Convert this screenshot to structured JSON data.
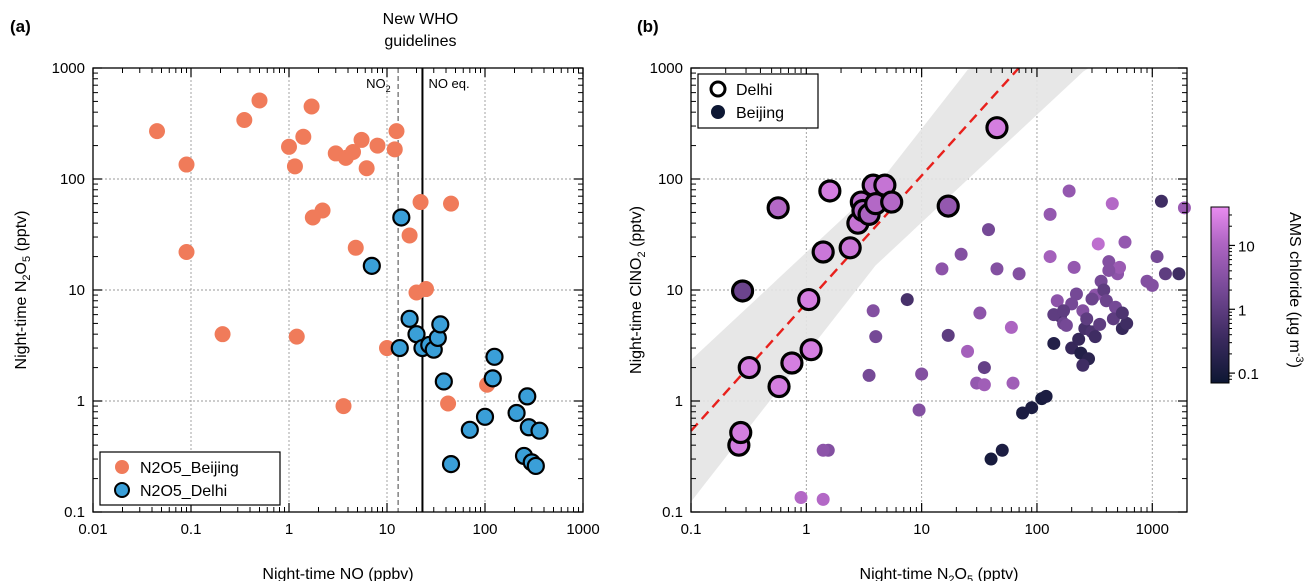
{
  "figure": {
    "panel_labels": [
      "(a)",
      "(b)"
    ]
  },
  "chart_data": [
    {
      "type": "scatter",
      "panel": "(a)",
      "xlabel": "Night-time NO (ppbv)",
      "ylabel_main": "Night-time N",
      "ylabel_sub1": "2",
      "ylabel_mid": "O",
      "ylabel_sub2": "5",
      "ylabel_end": " (pptv)",
      "xscale": "log",
      "yscale": "log",
      "xlim": [
        0.01,
        1000
      ],
      "ylim": [
        0.1,
        1000
      ],
      "xticks": [
        "0.01",
        "0.1",
        "1",
        "10",
        "100",
        "1000"
      ],
      "yticks": [
        "0.1",
        "1",
        "10",
        "100",
        "1000"
      ],
      "grid": true,
      "legend": "bottom-left",
      "guideline_title_line1": "New WHO",
      "guideline_title_line2": "guidelines",
      "guidelines": [
        {
          "label_main": "NO",
          "label_sub": "2",
          "x": 13,
          "style": "dashed"
        },
        {
          "label_main": "NO eq.",
          "label_sub": "",
          "x": 23,
          "style": "solid"
        }
      ],
      "series": [
        {
          "name": "N2O5_Beijing",
          "color": "#f07b5a",
          "outline": false,
          "x": [
            0.045,
            0.09,
            0.09,
            0.21,
            0.35,
            0.5,
            1.0,
            1.15,
            1.2,
            1.4,
            1.7,
            1.75,
            2.2,
            3.0,
            3.6,
            3.8,
            4.5,
            4.8,
            5.5,
            6.2,
            8.0,
            10.0,
            12.0,
            12.5,
            17.0,
            20.0,
            22.0,
            25.0,
            45.0,
            42.0,
            105.0
          ],
          "y": [
            270,
            135,
            22,
            4.0,
            340,
            510,
            195,
            130,
            3.8,
            240,
            450,
            45,
            52,
            170,
            0.9,
            155,
            175,
            24,
            225,
            125,
            200,
            3.0,
            185,
            270,
            31,
            9.5,
            62,
            10.2,
            60,
            0.95,
            1.4
          ]
        },
        {
          "name": "N2O5_Delhi",
          "color": "#3a9fd8",
          "outline": true,
          "x": [
            7.0,
            14.0,
            13.5,
            17.0,
            20.0,
            23.0,
            27.0,
            30.0,
            33.0,
            35.0,
            38.0,
            45.0,
            70.0,
            100.0,
            120.0,
            125.0,
            210.0,
            250.0,
            270.0,
            280.0,
            300.0,
            330.0,
            360.0
          ],
          "y": [
            16.5,
            45.0,
            3.0,
            5.5,
            4.0,
            3.0,
            3.2,
            2.9,
            3.7,
            4.9,
            1.5,
            0.27,
            0.55,
            0.72,
            1.6,
            2.5,
            0.78,
            0.32,
            1.1,
            0.58,
            0.28,
            0.26,
            0.54
          ]
        }
      ]
    },
    {
      "type": "scatter",
      "panel": "(b)",
      "xlabel_main": "Night-time N",
      "xlabel_sub1": "2",
      "xlabel_mid": "O",
      "xlabel_sub2": "5",
      "xlabel_end": " (pptv)",
      "ylabel_main": "Night-time ClNO",
      "ylabel_sub": "2",
      "ylabel_end": " (pptv)",
      "xscale": "log",
      "yscale": "log",
      "xlim": [
        0.1,
        2000
      ],
      "ylim": [
        0.1,
        1000
      ],
      "xticks": [
        "0.1",
        "1",
        "10",
        "100",
        "1000"
      ],
      "yticks": [
        "0.1",
        "1",
        "10",
        "100",
        "1000"
      ],
      "grid": true,
      "legend": "top-left",
      "fit_line": {
        "color": "#e8201c",
        "style": "dashed",
        "slope": 1.15,
        "intercept_at_x1": 7.6
      },
      "fit_band_color": "#e4e4e4",
      "colorbar": {
        "label_main": "AMS chloride (µg m",
        "label_sup": "-3",
        "label_end": ")",
        "ticks": [
          "0.1",
          "1",
          "10"
        ],
        "range": [
          0.07,
          40
        ],
        "scale": "log",
        "colors": [
          "#0d1733",
          "#3a2a5e",
          "#7a4b9a",
          "#b066c4",
          "#e98cf0"
        ]
      },
      "series": [
        {
          "name": "Delhi",
          "legend_marker": "open-circle",
          "outline": true,
          "x": [
            0.26,
            0.27,
            0.28,
            0.32,
            0.58,
            0.75,
            1.05,
            1.1,
            0.57,
            1.4,
            1.6,
            2.4,
            2.8,
            3.0,
            3.1,
            3.5,
            3.8,
            4.0,
            4.8,
            5.5,
            17.0,
            45.0
          ],
          "y": [
            0.4,
            0.52,
            9.8,
            2.0,
            1.35,
            2.2,
            8.2,
            2.9,
            55.0,
            22.0,
            78.0,
            24.0,
            40.0,
            62.0,
            52.0,
            48.0,
            88.0,
            60.0,
            88.0,
            62.0,
            57.0,
            290.0
          ],
          "c": [
            25,
            25,
            1.5,
            25,
            25,
            25,
            25,
            25,
            12,
            20,
            25,
            20,
            18,
            15,
            12,
            10,
            15,
            12,
            18,
            12,
            5,
            25
          ]
        },
        {
          "name": "Beijing",
          "legend_marker": "filled-dark",
          "outline": false,
          "x": [
            0.9,
            1.4,
            1.55,
            3.5,
            3.8,
            4.0,
            7.5,
            9.5,
            10.0,
            15.0,
            17.0,
            22.0,
            25.0,
            30.0,
            32.0,
            35.0,
            38.0,
            40.0,
            45.0,
            50.0,
            60.0,
            62.0,
            70.0,
            75.0,
            90.0,
            110.0,
            120.0,
            130.0,
            140.0,
            150.0,
            160.0,
            170.0,
            180.0,
            190.0,
            200.0,
            210.0,
            220.0,
            230.0,
            240.0,
            250.0,
            260.0,
            270.0,
            280.0,
            300.0,
            320.0,
            340.0,
            360.0,
            380.0,
            400.0,
            420.0,
            450.0,
            480.0,
            500.0,
            520.0,
            550.0,
            580.0,
            600.0,
            900.0,
            1000.0,
            1100.0,
            1200.0,
            1300.0,
            1700.0,
            1900.0,
            130.0,
            140.0,
            200.0,
            250.0,
            300.0,
            320.0,
            350.0,
            420.0,
            460.0,
            550.0,
            170.0,
            35.0,
            1.4
          ],
          "y": [
            0.135,
            0.13,
            0.36,
            1.7,
            6.5,
            3.8,
            8.2,
            0.83,
            1.75,
            15.5,
            3.9,
            21.0,
            2.8,
            1.45,
            6.2,
            1.4,
            35.0,
            0.3,
            15.5,
            0.36,
            4.6,
            1.45,
            14.0,
            0.78,
            0.87,
            1.05,
            1.1,
            20.0,
            3.3,
            8.0,
            5.8,
            5.0,
            4.8,
            78.0,
            3.0,
            16.0,
            9.2,
            3.6,
            2.7,
            6.5,
            4.5,
            5.5,
            2.4,
            4.2,
            9.0,
            26.0,
            12.0,
            10.0,
            8.0,
            18.0,
            60.0,
            7.0,
            14.0,
            16.0,
            4.5,
            27.0,
            5.0,
            12.0,
            11.0,
            20.0,
            63.0,
            14.0,
            14.0,
            55.0,
            48.0,
            6.0,
            7.5,
            2.1,
            8.3,
            3.8,
            4.9,
            15.0,
            5.5,
            6.2,
            6.5,
            2.0,
            0.36
          ],
          "c": [
            12,
            12,
            3,
            2,
            3,
            2,
            0.5,
            3,
            3,
            4,
            1,
            3,
            8,
            5,
            4,
            7,
            2,
            0.1,
            3,
            0.12,
            10,
            7,
            3,
            0.12,
            0.12,
            0.1,
            0.12,
            8,
            0.15,
            4,
            0.5,
            1.5,
            2,
            5,
            0.3,
            5,
            2,
            0.3,
            0.15,
            3,
            0.5,
            1,
            0.2,
            0.6,
            4,
            15,
            2,
            1,
            1.5,
            3,
            12,
            2,
            4,
            6,
            0.3,
            5,
            0.4,
            3,
            3,
            2,
            0.4,
            1,
            0.4,
            6,
            5,
            1,
            2,
            0.4,
            1.5,
            0.4,
            1,
            3,
            1,
            0.6,
            1,
            1.2,
            4
          ]
        }
      ]
    }
  ]
}
